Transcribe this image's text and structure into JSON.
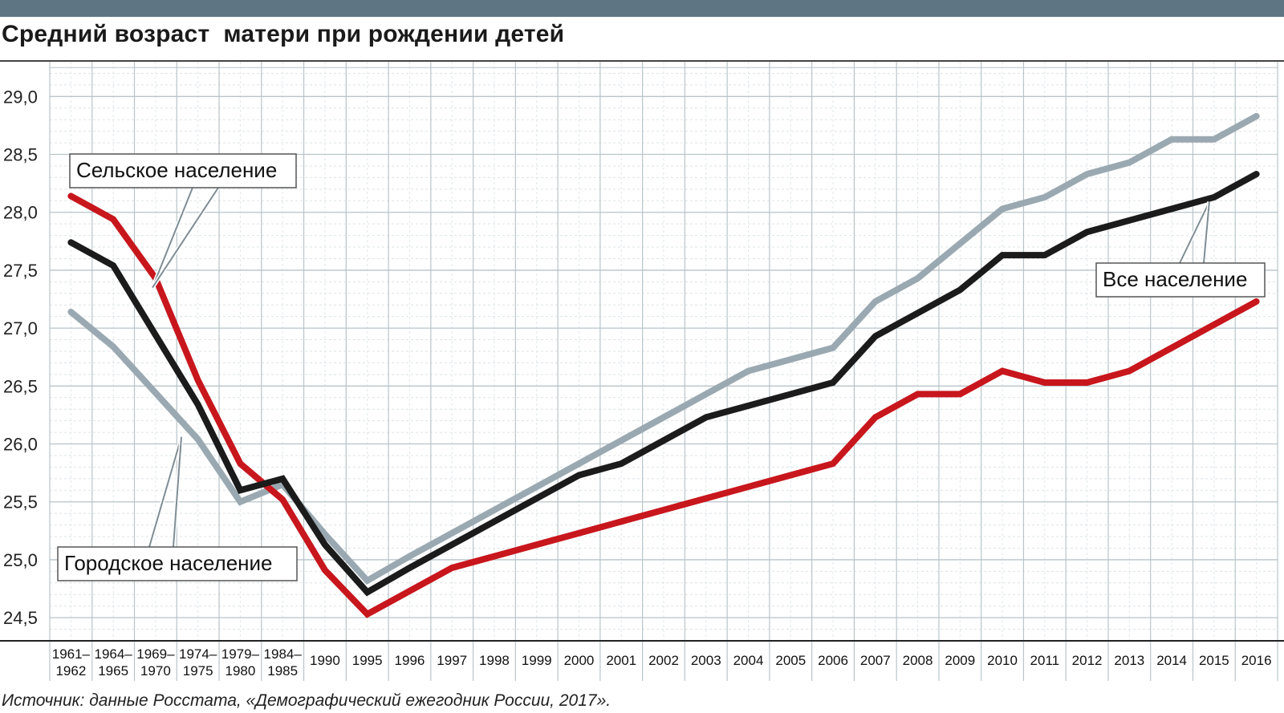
{
  "title": "Средний возраст  матери при рождении детей",
  "source": "Источник: данные Росстата, «Демографический ежегодник России, 2017».",
  "colors": {
    "topbar": "#5e7684",
    "rural": "#c8161d",
    "total": "#1b1b1b",
    "urban": "#9aa9b1",
    "grid": "#b9c4ca"
  },
  "chart_data": {
    "type": "line",
    "title": "Средний возраст  матери при рождении детей",
    "xlabel": "",
    "ylabel": "",
    "ylim": [
      24.3,
      29.3
    ],
    "yticks": [
      "24,5",
      "25,0",
      "25,5",
      "26,0",
      "26,5",
      "27,0",
      "27,5",
      "28,0",
      "28,5",
      "29,0"
    ],
    "ytick_values": [
      24.5,
      25.0,
      25.5,
      26.0,
      26.5,
      27.0,
      27.5,
      28.0,
      28.5,
      29.0
    ],
    "grid": true,
    "categories": [
      [
        "1961–",
        "1962"
      ],
      [
        "1964–",
        "1965"
      ],
      [
        "1969–",
        "1970"
      ],
      [
        "1974–",
        "1975"
      ],
      [
        "1979–",
        "1980"
      ],
      [
        "1984–",
        "1985"
      ],
      [
        "1990"
      ],
      [
        "1995"
      ],
      [
        "1996"
      ],
      [
        "1997"
      ],
      [
        "1998"
      ],
      [
        "1999"
      ],
      [
        "2000"
      ],
      [
        "2001"
      ],
      [
        "2002"
      ],
      [
        "2003"
      ],
      [
        "2004"
      ],
      [
        "2005"
      ],
      [
        "2006"
      ],
      [
        "2007"
      ],
      [
        "2008"
      ],
      [
        "2009"
      ],
      [
        "2010"
      ],
      [
        "2011"
      ],
      [
        "2012"
      ],
      [
        "2013"
      ],
      [
        "2014"
      ],
      [
        "2015"
      ],
      [
        "2016"
      ]
    ],
    "series": [
      {
        "name": "Сельское население",
        "color": "#c8161d",
        "values": [
          28.14,
          27.94,
          27.43,
          26.55,
          25.83,
          25.52,
          24.91,
          24.53,
          24.73,
          24.93,
          25.03,
          25.13,
          25.23,
          25.33,
          25.43,
          25.53,
          25.63,
          25.73,
          25.83,
          26.23,
          26.43,
          26.43,
          26.63,
          26.53,
          26.53,
          26.63,
          26.83,
          27.03,
          27.23
        ]
      },
      {
        "name": "Все население",
        "color": "#1b1b1b",
        "values": [
          27.74,
          27.54,
          26.94,
          26.34,
          25.6,
          25.7,
          25.13,
          24.72,
          24.93,
          25.13,
          25.33,
          25.53,
          25.73,
          25.83,
          26.03,
          26.23,
          26.33,
          26.43,
          26.53,
          26.93,
          27.13,
          27.33,
          27.63,
          27.63,
          27.83,
          27.93,
          28.03,
          28.13,
          28.33
        ]
      },
      {
        "name": "Городское население",
        "color": "#9aa9b1",
        "values": [
          27.14,
          26.84,
          26.44,
          26.04,
          25.5,
          25.65,
          25.22,
          24.82,
          25.03,
          25.23,
          25.43,
          25.63,
          25.83,
          26.03,
          26.23,
          26.43,
          26.63,
          26.73,
          26.83,
          27.23,
          27.43,
          27.73,
          28.03,
          28.13,
          28.33,
          28.43,
          28.63,
          28.63,
          28.83
        ]
      }
    ],
    "callouts": [
      {
        "text": "Сельское население",
        "series": "Сельское население"
      },
      {
        "text": "Городское население",
        "series": "Городское население"
      },
      {
        "text": "Все население",
        "series": "Все население"
      }
    ]
  }
}
